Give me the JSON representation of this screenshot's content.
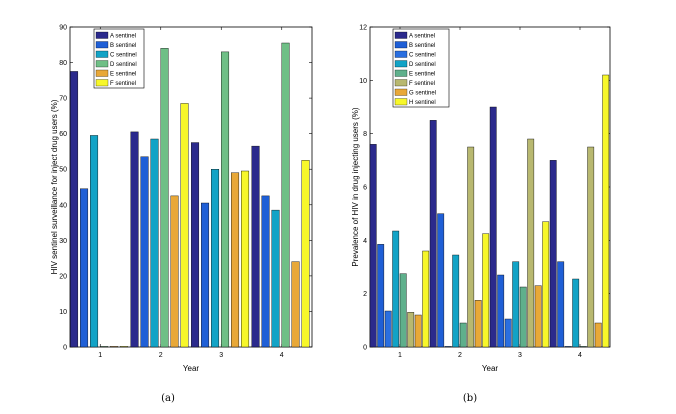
{
  "chart_data": [
    {
      "type": "bar",
      "categories": [
        "1",
        "2",
        "3",
        "4"
      ],
      "xlabel": "Year",
      "ylabel": "HIV sentinel surveillance for inject drug users (%)",
      "ylim": [
        0,
        90
      ],
      "yticks": [
        0,
        10,
        20,
        30,
        40,
        50,
        60,
        70,
        80,
        90
      ],
      "caption": "(a)",
      "legend_position": "top-left",
      "series": [
        {
          "name": "A sentinel",
          "color": "#2b2a8c",
          "values": [
            77.5,
            60.5,
            57.5,
            56.5
          ]
        },
        {
          "name": "B sentinel",
          "color": "#1f5fd6",
          "values": [
            44.5,
            53.5,
            40.5,
            42.5
          ]
        },
        {
          "name": "C sentinel",
          "color": "#12a3c6",
          "values": [
            59.5,
            58.5,
            50,
            38.5
          ]
        },
        {
          "name": "D sentinel",
          "color": "#6fbf86",
          "values": [
            0,
            84,
            83,
            85.5
          ]
        },
        {
          "name": "E sentinel",
          "color": "#e8a838",
          "values": [
            0,
            42.5,
            49,
            24
          ]
        },
        {
          "name": "F sentinel",
          "color": "#f7f72a",
          "values": [
            0,
            68.5,
            49.5,
            52.5
          ]
        }
      ]
    },
    {
      "type": "bar",
      "categories": [
        "1",
        "2",
        "3",
        "4"
      ],
      "xlabel": "Year",
      "ylabel": "Prevalence of HIV in drug injecting users (%)",
      "ylim": [
        0,
        12
      ],
      "yticks": [
        0,
        2,
        4,
        6,
        8,
        10,
        12
      ],
      "caption": "(b)",
      "legend_position": "top-left",
      "series": [
        {
          "name": "A sentinel",
          "color": "#2b2a8c",
          "values": [
            7.6,
            8.5,
            9.0,
            7.0
          ]
        },
        {
          "name": "B sentinel",
          "color": "#1f5fd6",
          "values": [
            3.85,
            5.0,
            2.7,
            3.2
          ]
        },
        {
          "name": "C sentinel",
          "color": "#2a6fe0",
          "values": [
            1.35,
            0,
            1.05,
            0
          ]
        },
        {
          "name": "D sentinel",
          "color": "#12a3c6",
          "values": [
            4.35,
            3.45,
            3.2,
            2.55
          ]
        },
        {
          "name": "E sentinel",
          "color": "#5fb08c",
          "values": [
            2.75,
            0.9,
            2.25,
            0
          ]
        },
        {
          "name": "F sentinel",
          "color": "#b8b870",
          "values": [
            1.3,
            7.5,
            7.8,
            7.5
          ]
        },
        {
          "name": "G sentinel",
          "color": "#e8a838",
          "values": [
            1.2,
            1.75,
            2.3,
            0.9
          ]
        },
        {
          "name": "H sentinel",
          "color": "#f7f72a",
          "values": [
            3.6,
            4.25,
            4.7,
            10.2
          ]
        }
      ]
    }
  ]
}
